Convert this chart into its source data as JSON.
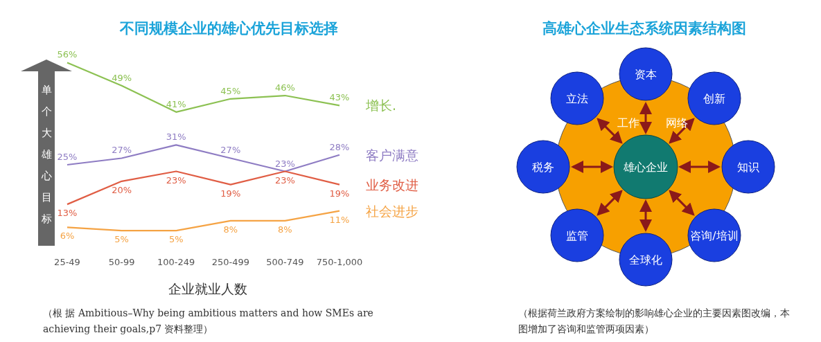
{
  "chart_data": [
    {
      "type": "line",
      "title": "不同规模企业的雄心优先目标选择",
      "xlabel": "企业就业人数",
      "ylabel": "单个大雄心目标",
      "categories": [
        "25-49",
        "50-99",
        "100-249",
        "250-499",
        "500-749",
        "750-1,000"
      ],
      "series": [
        {
          "name": "增长.",
          "color": "#8cc152",
          "values": [
            56,
            49,
            41,
            45,
            46,
            43
          ],
          "value_labels": [
            "56%",
            "49%",
            "41%",
            "45%",
            "46%",
            "43%"
          ]
        },
        {
          "name": "客户满意",
          "color": "#8e7cc3",
          "values": [
            25,
            27,
            31,
            27,
            23,
            28
          ],
          "value_labels": [
            "25%",
            "27%",
            "31%",
            "27%",
            "23%",
            "28%"
          ]
        },
        {
          "name": "业务改进",
          "color": "#e05d44",
          "values": [
            13,
            20,
            23,
            19,
            23,
            19
          ],
          "value_labels": [
            "13%",
            "20%",
            "23%",
            "19%",
            "23%",
            "19%"
          ]
        },
        {
          "name": "社会进步",
          "color": "#f5a344",
          "values": [
            6,
            5,
            5,
            8,
            8,
            11
          ],
          "value_labels": [
            "6%",
            "5%",
            "5%",
            "8%",
            "8%",
            "11%"
          ]
        }
      ],
      "annotations": [
        "（根 据 Ambitious–Why being ambitious matters and how SMEs are achieving their goals,p7 资料整理）"
      ]
    },
    {
      "type": "other",
      "title": "高雄心企业生态系统因素结构图",
      "categories": [
        "资本",
        "创新",
        "知识",
        "咨询/培训",
        "全球化",
        "监管",
        "税务",
        "立法"
      ],
      "annotations": [
        "雄心企业",
        "工作",
        "网络",
        "（根据荷兰政府方案绘制的影响雄心企业的主要因素图改编，本图增加了咨询和监管两项因素）"
      ]
    }
  ]
}
